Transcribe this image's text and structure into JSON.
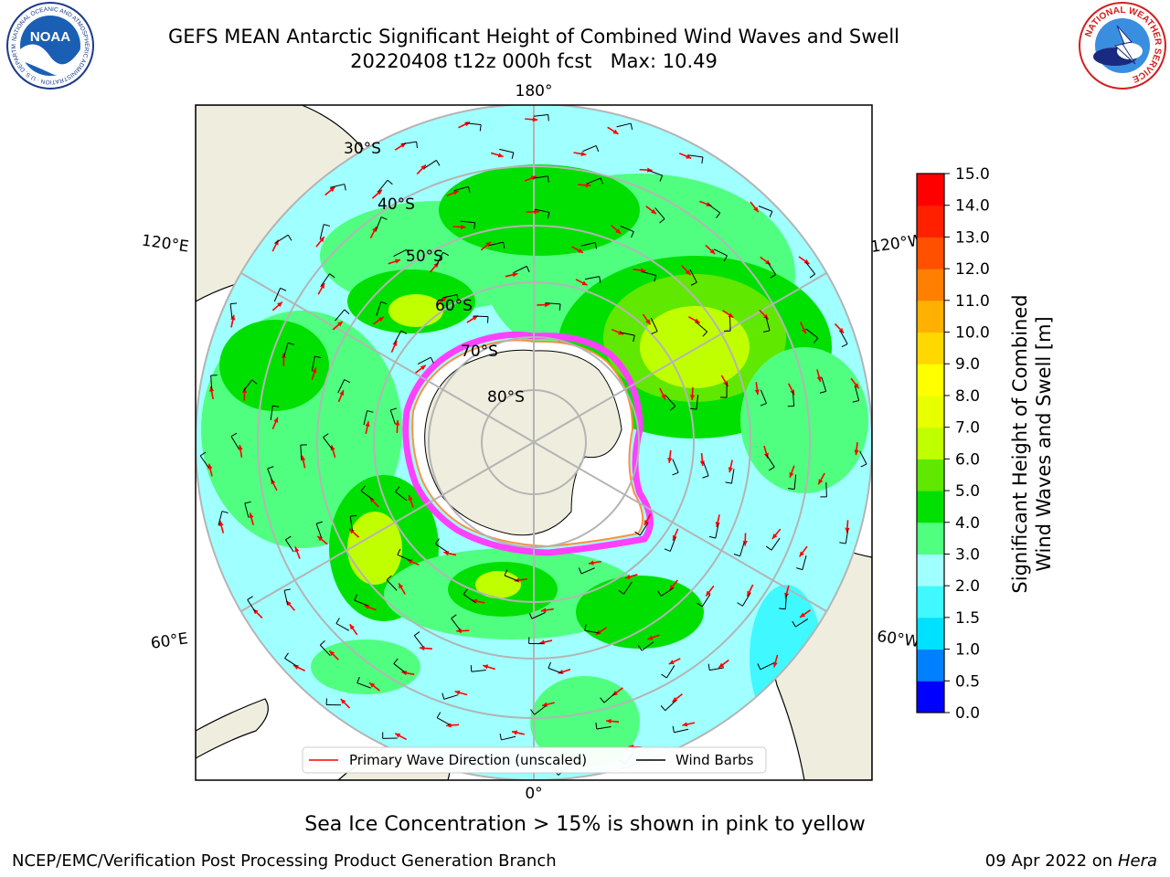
{
  "title": {
    "line1": "GEFS MEAN Antarctic Significant Height of Combined Wind Waves and Swell",
    "line2": "20220408 t12z 000h fcst   Max: 10.49"
  },
  "logos": {
    "noaa": {
      "text": "NOAA",
      "ring_text": "NATIONAL OCEANIC AND ATMOSPHERIC ADMINISTRATION · U.S. DEPARTMENT OF COMMERCE"
    },
    "nws": {
      "ring_text": "NATIONAL WEATHER SERVICE"
    }
  },
  "map": {
    "projection": "south-polar-stereographic",
    "longitude_labels": {
      "top": "180°",
      "bottom": "0°",
      "upper_left": "120°E",
      "upper_right": "120°W",
      "lower_left": "60°E",
      "lower_right": "60°W"
    },
    "latitude_labels": [
      "30°S",
      "40°S",
      "50°S",
      "60°S",
      "70°S",
      "80°S"
    ],
    "legend": [
      {
        "label": "Primary Wave Direction (unscaled)",
        "color": "#ff0000"
      },
      {
        "label": "Wind Barbs",
        "color": "#000000"
      }
    ]
  },
  "colorbar": {
    "label_line1": "Significant Height of Combined",
    "label_line2": "Wind Waves and Swell [m]",
    "ticks": [
      "0.0",
      "0.5",
      "1.0",
      "1.5",
      "2.0",
      "3.0",
      "4.0",
      "5.0",
      "6.0",
      "7.0",
      "8.0",
      "9.0",
      "10.0",
      "11.0",
      "12.0",
      "13.0",
      "14.0",
      "15.0"
    ],
    "colors": [
      "#0000ff",
      "#0080ff",
      "#00e0ff",
      "#40f8ff",
      "#a0ffff",
      "#50ff80",
      "#00e000",
      "#60e800",
      "#c0ff00",
      "#e8ff00",
      "#ffff00",
      "#ffd800",
      "#ffb000",
      "#ff8000",
      "#ff5000",
      "#ff2000",
      "#ff0000"
    ]
  },
  "notes": {
    "sea_ice": "Sea Ice Concentration > 15% is shown in pink to yellow",
    "producer": "NCEP/EMC/Verification Post Processing Product Generation Branch",
    "date": "09 Apr 2022 on ",
    "machine": "Hera"
  }
}
